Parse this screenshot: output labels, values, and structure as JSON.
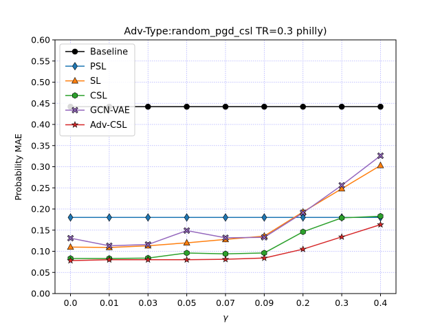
{
  "chart_data": {
    "type": "line",
    "title": "Adv-Type:random_pgd_csl TR=0.3 philly)",
    "xlabel": "γ",
    "ylabel": "Probability MAE",
    "categories": [
      "0.0",
      "0.01",
      "0.03",
      "0.05",
      "0.07",
      "0.09",
      "0.2",
      "0.3",
      "0.4"
    ],
    "ylim": [
      0.0,
      0.6
    ],
    "yticks": [
      "0.00",
      "0.05",
      "0.10",
      "0.15",
      "0.20",
      "0.25",
      "0.30",
      "0.35",
      "0.40",
      "0.45",
      "0.50",
      "0.55",
      "0.60"
    ],
    "grid": true,
    "legend_position": "top-left",
    "series": [
      {
        "name": "Baseline",
        "color": "#000000",
        "marker": "circle",
        "values": [
          0.442,
          0.442,
          0.442,
          0.442,
          0.442,
          0.442,
          0.442,
          0.442,
          0.442
        ]
      },
      {
        "name": "PSL",
        "color": "#1f77b4",
        "marker": "thin-diamond",
        "values": [
          0.18,
          0.18,
          0.18,
          0.18,
          0.18,
          0.18,
          0.18,
          0.18,
          0.18
        ]
      },
      {
        "name": "SL",
        "color": "#ff7f0e",
        "marker": "triangle",
        "values": [
          0.11,
          0.109,
          0.113,
          0.12,
          0.128,
          0.136,
          0.193,
          0.248,
          0.303
        ]
      },
      {
        "name": "CSL",
        "color": "#2ca02c",
        "marker": "hexagon",
        "values": [
          0.083,
          0.083,
          0.084,
          0.096,
          0.094,
          0.096,
          0.146,
          0.179,
          0.183
        ]
      },
      {
        "name": "GCN-VAE",
        "color": "#9467bd",
        "marker": "x-filled",
        "values": [
          0.131,
          0.113,
          0.116,
          0.149,
          0.132,
          0.133,
          0.191,
          0.256,
          0.326
        ]
      },
      {
        "name": "Adv-CSL",
        "color": "#d62728",
        "marker": "star",
        "values": [
          0.078,
          0.08,
          0.08,
          0.08,
          0.081,
          0.084,
          0.105,
          0.134,
          0.163
        ]
      }
    ]
  }
}
